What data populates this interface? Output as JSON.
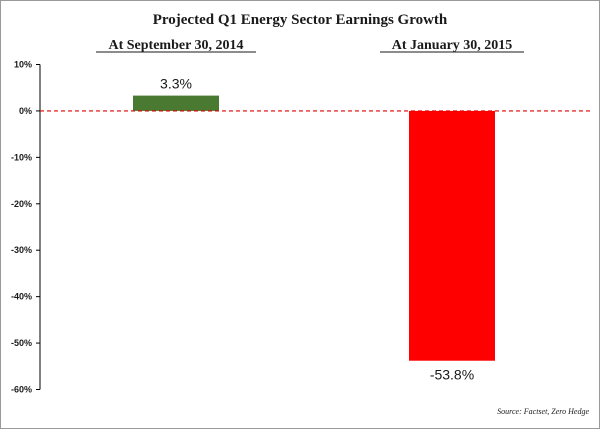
{
  "chart_data": {
    "type": "bar",
    "title": "Projected Q1 Energy Sector Earnings Growth",
    "categories": [
      "At September 30, 2014",
      "At January 30, 2015"
    ],
    "values": [
      3.3,
      -53.8
    ],
    "data_labels": [
      "3.3%",
      "-53.8%"
    ],
    "bar_colors": [
      "#4a7a32",
      "#ff0000"
    ],
    "ylim": [
      -60,
      10
    ],
    "yticks": [
      10,
      0,
      -10,
      -20,
      -30,
      -40,
      -50,
      -60
    ],
    "ytick_labels": [
      "10%",
      "0%",
      "-10%",
      "-20%",
      "-30%",
      "-40%",
      "-50%",
      "-60%"
    ],
    "zero_line": {
      "style": "dashed",
      "color": "#e00000"
    },
    "grid": false,
    "xlabel": "",
    "ylabel": ""
  },
  "source": "Source: Factset, Zero Hedge",
  "colors": {
    "frame": "#9a9a9a",
    "axis": "#000000",
    "text": "#1a1a1a"
  }
}
